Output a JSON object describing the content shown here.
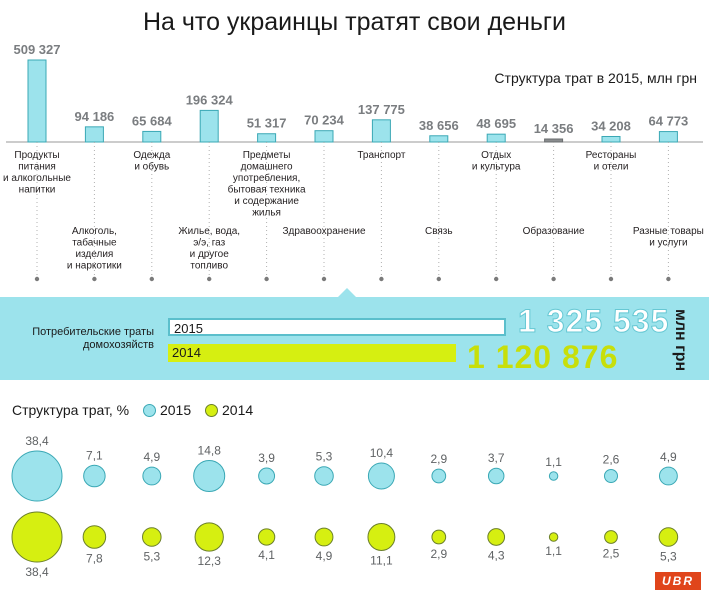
{
  "header": {
    "title": "На что украинцы тратят свои деньги",
    "subtitle": "Структура трат в 2015, млн грн"
  },
  "summary": {
    "label": "Потребительские траты домохозяйств",
    "year_2015": "2015",
    "year_2014": "2014",
    "total_2015": "1 325 535",
    "total_2014": "1 120 876",
    "units": "млн грн"
  },
  "legend": {
    "title": "Структура трат, %",
    "item_2015": "2015",
    "item_2014": "2014"
  },
  "brand": {
    "logo_text": "UBR"
  },
  "colors": {
    "bar_2015": "#9ce3ec",
    "bar_stroke": "#3aa8b5",
    "dot_2014": "#d6ef11",
    "band": "#9ce3ec"
  },
  "chart_data": {
    "type": "bar",
    "title": "Структура трат в 2015, млн грн",
    "categories": [
      "Продукты питания и алкогольные напитки",
      "Алкоголь, табачные изделия и наркотики",
      "Одежда и обувь",
      "Жилье, вода, э/э, газ и другое топливо",
      "Предметы домашнего употребления, бытовая техника и содержание жилья",
      "Здравоохранение",
      "Транспорт",
      "Связь",
      "Отдых и культура",
      "Образование",
      "Рестораны и отели",
      "Разные товары и услуги"
    ],
    "category_lines": [
      [
        "Продукты",
        "питания",
        "и алкогольные",
        "напитки"
      ],
      [
        "Алкоголь,",
        "табачные",
        "изделия",
        "и наркотики"
      ],
      [
        "Одежда",
        "и обувь"
      ],
      [
        "Жилье, вода,",
        "э/э, газ",
        "и другое",
        "топливо"
      ],
      [
        "Предметы",
        "домашнего",
        "употребления,",
        "бытовая техника",
        "и содержание",
        "жилья"
      ],
      [
        "Здравоохранение"
      ],
      [
        "Транспорт"
      ],
      [
        "Связь"
      ],
      [
        "Отдых",
        "и культура"
      ],
      [
        "Образование"
      ],
      [
        "Рестораны",
        "и отели"
      ],
      [
        "Разные товары",
        "и услуги"
      ]
    ],
    "values": [
      509327,
      94186,
      65684,
      196324,
      51317,
      70234,
      137775,
      38656,
      48695,
      14356,
      34208,
      64773
    ],
    "value_labels": [
      "509 327",
      "94 186",
      "65 684",
      "196 324",
      "51 317",
      "70 234",
      "137 775",
      "38 656",
      "48 695",
      "14 356",
      "34 208",
      "64 773"
    ],
    "share_2015": [
      38.4,
      7.1,
      4.9,
      14.8,
      3.9,
      5.3,
      10.4,
      2.9,
      3.7,
      1.1,
      2.6,
      4.9
    ],
    "share_2015_labels": [
      "38,4",
      "7,1",
      "4,9",
      "14,8",
      "3,9",
      "5,3",
      "10,4",
      "2,9",
      "3,7",
      "1,1",
      "2,6",
      "4,9"
    ],
    "share_2014": [
      38.4,
      7.8,
      5.3,
      12.3,
      4.1,
      4.9,
      11.1,
      2.9,
      4.3,
      1.1,
      2.5,
      5.3
    ],
    "share_2014_labels": [
      "38,4",
      "7,8",
      "5,3",
      "12,3",
      "4,1",
      "4,9",
      "11,1",
      "2,9",
      "4,3",
      "1,1",
      "2,5",
      "5,3"
    ],
    "totals": {
      "2015": 1325535,
      "2014": 1120876
    },
    "ylim": [
      0,
      509327
    ]
  }
}
